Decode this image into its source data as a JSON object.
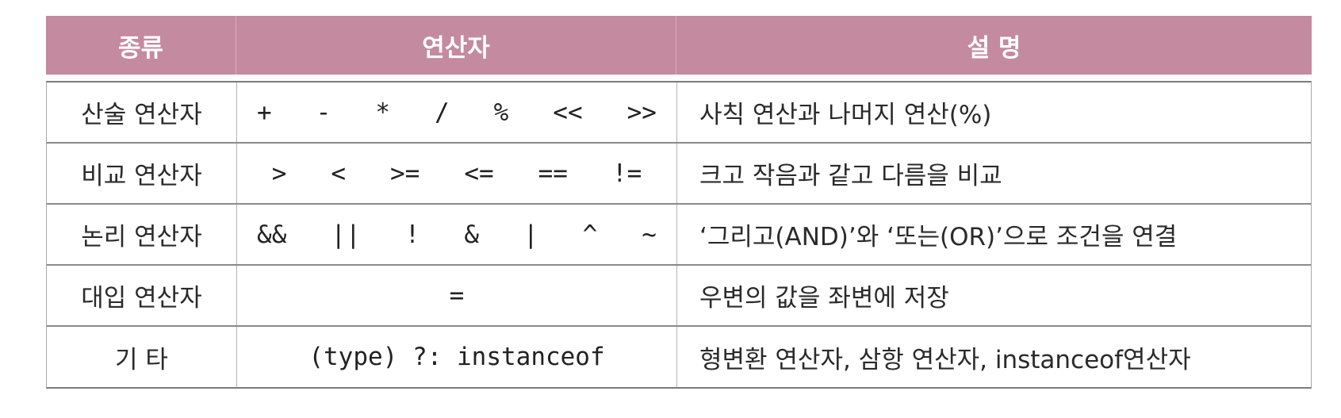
{
  "table": {
    "headers": [
      "종류",
      "연산자",
      "설 명"
    ],
    "rows": [
      {
        "kind": "산술 연산자",
        "operators": "+   -   *   /   %   <<   >>",
        "description": "사칙 연산과 나머지 연산(%)"
      },
      {
        "kind": "비교 연산자",
        "operators": ">   <   >=   <=   ==   !=",
        "description": "크고 작음과 같고 다름을 비교"
      },
      {
        "kind": "논리 연산자",
        "operators": "&&   ||   !   &   |   ^   ~",
        "description": "‘그리고(AND)’와 ‘또는(OR)’으로 조건을 연결"
      },
      {
        "kind": "대입 연산자",
        "operators": "=",
        "description": "우변의 값을 좌변에 저장"
      },
      {
        "kind": "기 타",
        "operators": "(type) ?: instanceof",
        "description": "형변환 연산자, 삼항 연산자, instanceof연산자"
      }
    ]
  },
  "colors": {
    "header_bg": "#c48aa0",
    "header_text": "#ffffff"
  }
}
